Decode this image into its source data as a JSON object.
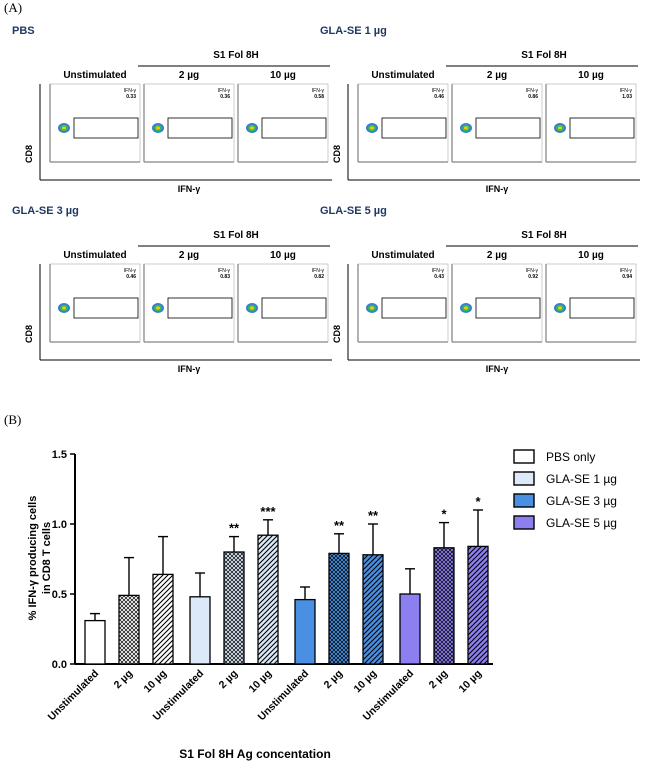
{
  "panel_a": {
    "letter": "(A)",
    "groups": [
      {
        "title": "PBS",
        "stim_header": "S1 Fol 8H",
        "columns": [
          "Unstimulated",
          "2 µg",
          "10 µg"
        ],
        "gate_label": "IFN-γ",
        "gate_values": [
          "0.33",
          "0.36",
          "0.58"
        ],
        "x_axis": "IFN-γ",
        "y_axis": "CD8"
      },
      {
        "title": "GLA-SE 1 µg",
        "stim_header": "S1 Fol 8H",
        "columns": [
          "Unstimulated",
          "2 µg",
          "10 µg"
        ],
        "gate_label": "IFN-γ",
        "gate_values": [
          "0.46",
          "0.86",
          "1.03"
        ],
        "x_axis": "IFN-γ",
        "y_axis": "CD8"
      },
      {
        "title": "GLA-SE 3 µg",
        "stim_header": "S1 Fol 8H",
        "columns": [
          "Unstimulated",
          "2 µg",
          "10 µg"
        ],
        "gate_label": "IFN-γ",
        "gate_values": [
          "0.46",
          "0.83",
          "0.82"
        ],
        "x_axis": "IFN-γ",
        "y_axis": "CD8"
      },
      {
        "title": "GLA-SE 5 µg",
        "stim_header": "S1 Fol 8H",
        "columns": [
          "Unstimulated",
          "2 µg",
          "10 µg"
        ],
        "gate_label": "IFN-γ",
        "gate_values": [
          "0.43",
          "0.92",
          "0.94"
        ],
        "x_axis": "IFN-γ",
        "y_axis": "CD8"
      }
    ]
  },
  "panel_b": {
    "letter": "(B)"
  },
  "chart_data": {
    "type": "bar",
    "ylabel_line1": "% IFN-γ producing cells",
    "ylabel_line2": "in CD8 T cells",
    "xlabel": "S1 Fol 8H Ag concentation",
    "ylim": [
      0,
      1.5
    ],
    "yticks": [
      "0.0",
      "0.5",
      "1.0",
      "1.5"
    ],
    "categories": [
      "Unstimulated",
      "2 µg",
      "10 µg"
    ],
    "series": [
      {
        "name": "PBS only",
        "color": "#ffffff",
        "values": [
          0.31,
          0.49,
          0.64
        ],
        "errors": [
          0.05,
          0.27,
          0.27
        ],
        "sig": [
          "",
          "",
          ""
        ]
      },
      {
        "name": "GLA-SE 1 µg",
        "color": "#dce9f8",
        "values": [
          0.48,
          0.8,
          0.92
        ],
        "errors": [
          0.17,
          0.11,
          0.11
        ],
        "sig": [
          "",
          "**",
          "***"
        ]
      },
      {
        "name": "GLA-SE 3 µg",
        "color": "#4a90e2",
        "values": [
          0.46,
          0.79,
          0.78
        ],
        "errors": [
          0.09,
          0.14,
          0.22
        ],
        "sig": [
          "",
          "**",
          "**"
        ]
      },
      {
        "name": "GLA-SE 5 µg",
        "color": "#8c7ff0",
        "values": [
          0.5,
          0.83,
          0.84
        ],
        "errors": [
          0.18,
          0.18,
          0.26
        ],
        "sig": [
          "",
          "*",
          "*"
        ]
      }
    ],
    "patterns": [
      "none",
      "crosshatch",
      "diagonal"
    ],
    "legend_position": "right"
  }
}
